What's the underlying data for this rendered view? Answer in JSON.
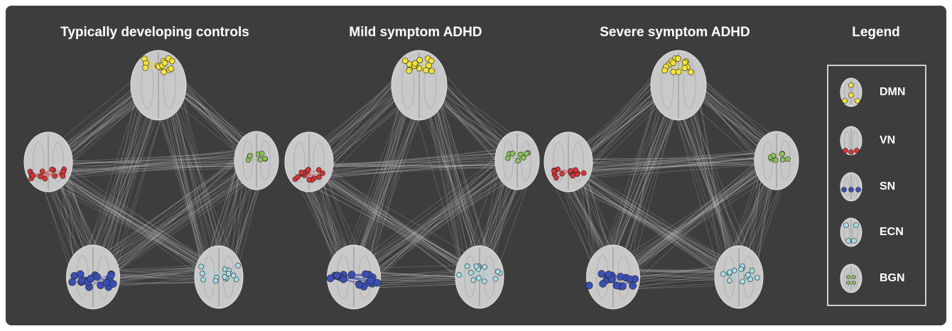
{
  "panels": [
    {
      "title": "Typically developing controls"
    },
    {
      "title": "Mild symptom ADHD"
    },
    {
      "title": "Severe symptom ADHD"
    }
  ],
  "legend": {
    "title": "Legend",
    "items": [
      {
        "label": "DMN",
        "color": "#f2e33a"
      },
      {
        "label": "VN",
        "color": "#d93535"
      },
      {
        "label": "SN",
        "color": "#3a4fb5"
      },
      {
        "label": "ECN",
        "color": "#a6dde8"
      },
      {
        "label": "BGN",
        "color": "#8dc25a"
      }
    ]
  }
}
